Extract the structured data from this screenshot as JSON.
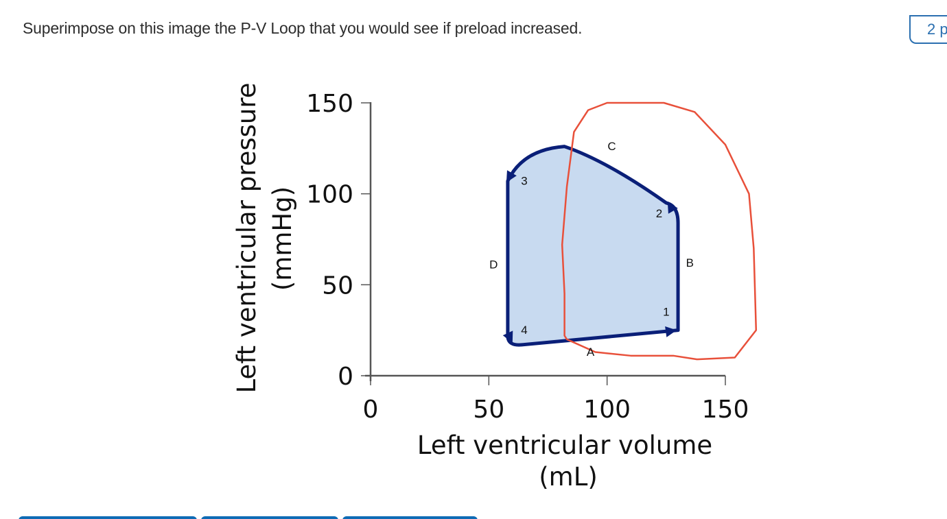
{
  "question": {
    "text": "Superimpose on this image the P-V Loop that you would see if preload increased."
  },
  "points_badge": {
    "label": "2 p"
  },
  "bottom_buttons": [
    {
      "label": ""
    },
    {
      "label": ""
    },
    {
      "label": ""
    }
  ],
  "colors": {
    "loop_stroke": "#0a1f78",
    "loop_fill": "#c8daf0",
    "overlay_stroke": "#e8503a",
    "axis": "#555555",
    "accent": "#0e6bb5"
  },
  "chart_data": {
    "type": "line",
    "title": "",
    "xlabel_line1": "Left ventricular volume",
    "xlabel_line2": "(mL)",
    "ylabel_line1": "Left ventricular pressure",
    "ylabel_line2": "(mmHg)",
    "xlim": [
      0,
      150
    ],
    "ylim": [
      0,
      150
    ],
    "x_ticks": [
      0,
      50,
      100,
      150
    ],
    "y_ticks": [
      0,
      50,
      100,
      150
    ],
    "x_tick_labels": [
      "0",
      "50",
      "100",
      "150"
    ],
    "y_tick_labels": [
      "0",
      "50",
      "100",
      "150"
    ],
    "grid": false,
    "series": [
      {
        "name": "Normal P-V loop",
        "points": [
          {
            "x": 64,
            "y": 17
          },
          {
            "x": 130,
            "y": 25
          },
          {
            "x": 130,
            "y": 84
          },
          {
            "x": 125,
            "y": 95
          },
          {
            "x": 100,
            "y": 118
          },
          {
            "x": 82,
            "y": 126
          },
          {
            "x": 70,
            "y": 122
          },
          {
            "x": 58,
            "y": 107
          },
          {
            "x": 58,
            "y": 22
          }
        ]
      },
      {
        "name": "Hand-drawn increased preload loop",
        "points": [
          {
            "x": 83,
            "y": 20
          },
          {
            "x": 95,
            "y": 13
          },
          {
            "x": 110,
            "y": 11
          },
          {
            "x": 128,
            "y": 11
          },
          {
            "x": 138,
            "y": 9
          },
          {
            "x": 154,
            "y": 10
          },
          {
            "x": 163,
            "y": 25
          },
          {
            "x": 162,
            "y": 70
          },
          {
            "x": 160,
            "y": 100
          },
          {
            "x": 150,
            "y": 127
          },
          {
            "x": 137,
            "y": 145
          },
          {
            "x": 124,
            "y": 150
          },
          {
            "x": 112,
            "y": 150
          },
          {
            "x": 100,
            "y": 150
          },
          {
            "x": 92,
            "y": 146
          },
          {
            "x": 86,
            "y": 134
          },
          {
            "x": 83,
            "y": 104
          },
          {
            "x": 81,
            "y": 72
          },
          {
            "x": 82,
            "y": 45
          },
          {
            "x": 82,
            "y": 22
          }
        ]
      }
    ],
    "annotations": [
      {
        "text": "1",
        "x": 125,
        "y": 33
      },
      {
        "text": "2",
        "x": 122,
        "y": 87
      },
      {
        "text": "3",
        "x": 65,
        "y": 105
      },
      {
        "text": "4",
        "x": 65,
        "y": 23
      },
      {
        "text": "A",
        "x": 93,
        "y": 11
      },
      {
        "text": "B",
        "x": 135,
        "y": 60
      },
      {
        "text": "C",
        "x": 102,
        "y": 124
      },
      {
        "text": "D",
        "x": 52,
        "y": 59
      }
    ]
  }
}
